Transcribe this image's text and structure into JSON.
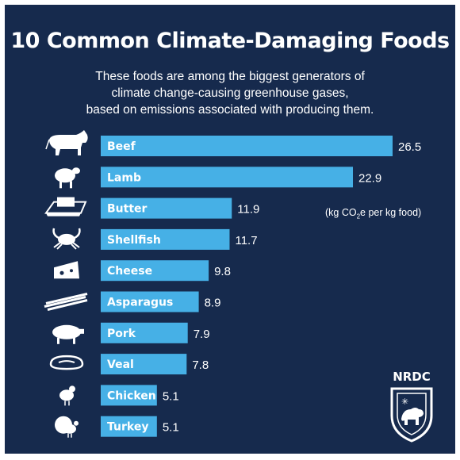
{
  "title": "10 Common Climate-Damaging Foods",
  "subtitle_lines": [
    "These foods are among the biggest generators of",
    "climate change-causing greenhouse gases,",
    "based on emissions associated with producing them."
  ],
  "unit_note": {
    "prefix": "(kg CO",
    "sub": "2",
    "suffix": "e per kg food)"
  },
  "logo_text": "NRDC",
  "colors": {
    "background": "#162a4d",
    "bar": "#46b0e6",
    "text": "#ffffff"
  },
  "chart_data": {
    "type": "bar",
    "orientation": "horizontal",
    "categories": [
      "Beef",
      "Lamb",
      "Butter",
      "Shellfish",
      "Cheese",
      "Asparagus",
      "Pork",
      "Veal",
      "Chicken",
      "Turkey"
    ],
    "values": [
      26.5,
      22.9,
      11.9,
      11.7,
      9.8,
      8.9,
      7.9,
      7.8,
      5.1,
      5.1
    ],
    "value_labels": [
      "26.5",
      "22.9",
      "11.9",
      "11.7",
      "9.8",
      "8.9",
      "7.9",
      "7.8",
      "5.1",
      "5.1"
    ],
    "icons": [
      "cow-icon",
      "sheep-icon",
      "butter-icon",
      "crab-icon",
      "cheese-icon",
      "asparagus-icon",
      "pig-icon",
      "steak-icon",
      "chicken-icon",
      "turkey-icon"
    ],
    "grid": false,
    "legend": "none"
  }
}
